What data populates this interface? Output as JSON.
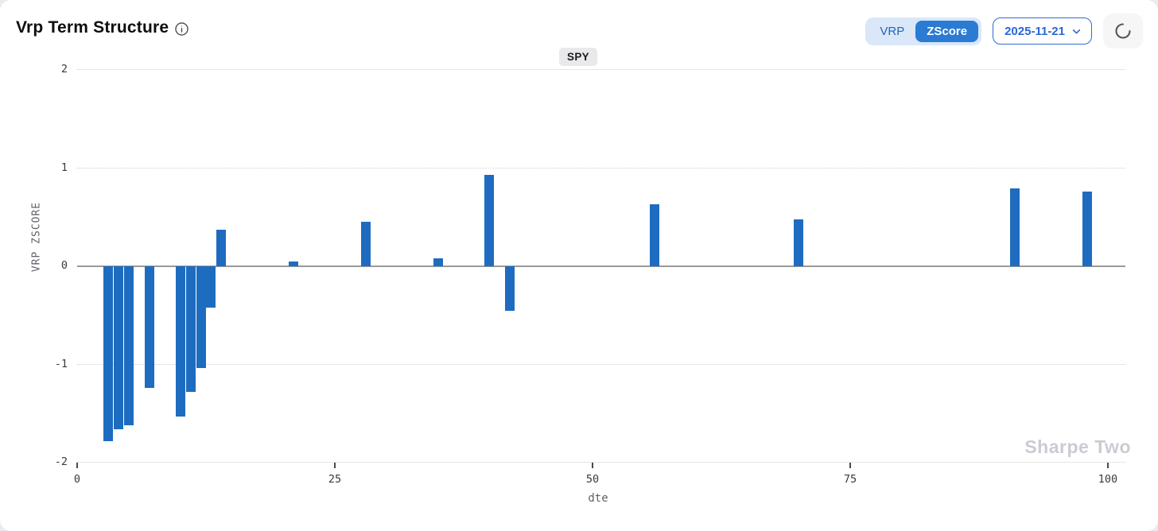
{
  "header": {
    "title": "Vrp Term Structure",
    "info_icon": "info-icon"
  },
  "controls": {
    "metric_toggle": {
      "options": [
        "VRP",
        "ZScore"
      ],
      "selected": "ZScore",
      "selected_bg": "#2b7ad3",
      "container_bg": "#d9e7f8"
    },
    "date_dropdown": {
      "selected": "2025-11-21",
      "accent": "#2e6bd2"
    },
    "refresh_icon": "refresh-spinner-icon"
  },
  "chart_data": {
    "type": "bar",
    "title": "",
    "facet_label": "SPY",
    "xlabel": "dte",
    "ylabel": "VRP ZSCORE",
    "x": [
      3,
      4,
      5,
      7,
      10,
      11,
      12,
      13,
      14,
      21,
      28,
      35,
      40,
      42,
      56,
      70,
      91,
      98
    ],
    "values": [
      -1.78,
      -1.66,
      -1.62,
      -1.24,
      -1.53,
      -1.28,
      -1.04,
      -0.42,
      0.37,
      0.05,
      0.45,
      0.08,
      0.93,
      -0.45,
      0.63,
      0.48,
      0.79,
      0.76
    ],
    "xticks": [
      0,
      25,
      50,
      75,
      100
    ],
    "yticks": [
      2,
      1,
      0,
      -1,
      -2
    ],
    "xlim": [
      0,
      101.7
    ],
    "ylim": [
      -2,
      2
    ],
    "bar_color": "#1e6cc0",
    "grid": "horizontal dotted, solid zero line",
    "legend": "none",
    "watermark": "Sharpe Two"
  }
}
